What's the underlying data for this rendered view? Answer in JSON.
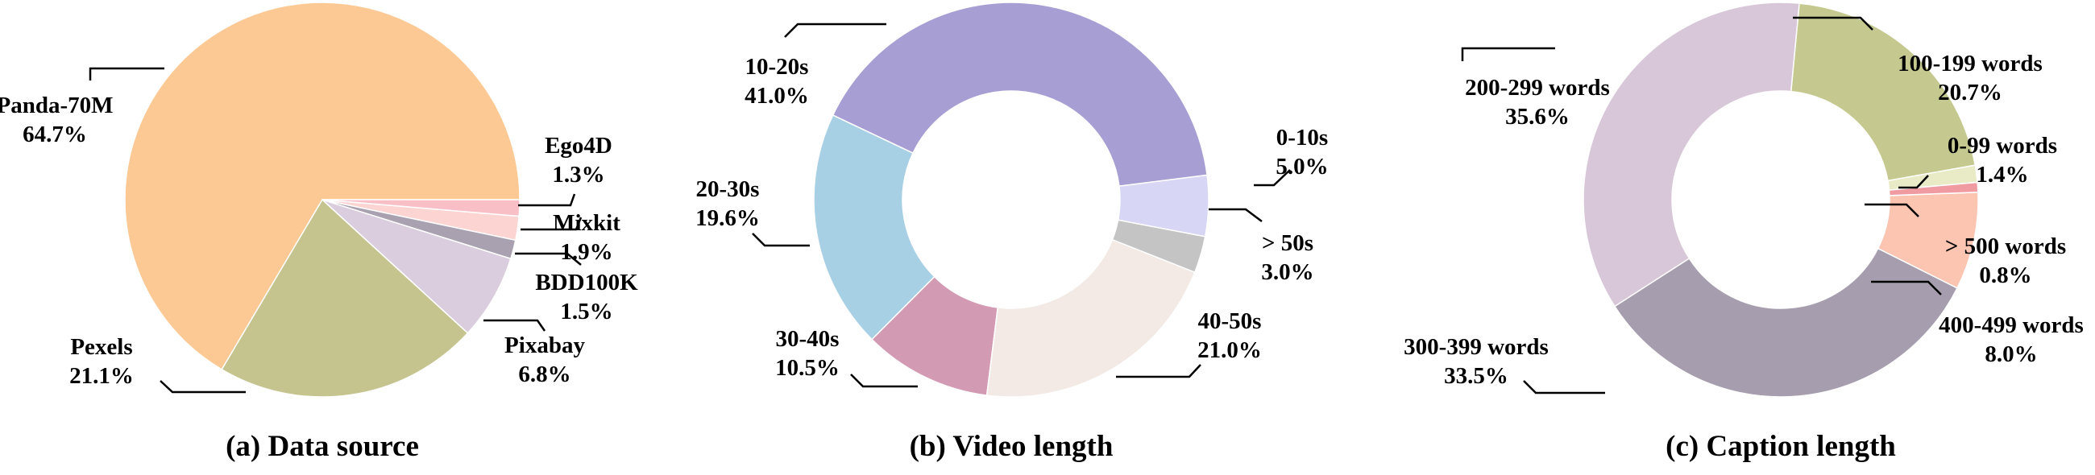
{
  "chart_data": [
    {
      "type": "pie",
      "title": "(a) Data source",
      "categories": [
        "Panda-70M",
        "Pexels",
        "Pixabay",
        "BDD100K",
        "Mixkit",
        "Ego4D"
      ],
      "values": [
        64.7,
        21.1,
        6.8,
        1.5,
        1.9,
        1.3
      ],
      "value_labels": [
        "64.7%",
        "21.1%",
        "6.8%",
        "1.5%",
        "1.9%",
        "1.3%"
      ],
      "colors": [
        "#FCC994",
        "#C5C48F",
        "#DACDDD",
        "#A9A1AF",
        "#FCD5D3",
        "#F8BFC6"
      ]
    },
    {
      "type": "pie",
      "title": "(b) Video length",
      "categories": [
        "0-10s",
        "10-20s",
        "20-30s",
        "30-40s",
        "40-50s",
        "> 50s"
      ],
      "values": [
        5.0,
        41.0,
        19.6,
        10.5,
        21.0,
        3.0
      ],
      "value_labels": [
        "5.0%",
        "41.0%",
        "19.6%",
        "10.5%",
        "21.0%",
        "3.0%"
      ],
      "colors": [
        "#D8D6F5",
        "#A79ED3",
        "#A8D0E5",
        "#D39AB3",
        "#F3EAE5",
        "#C4C4C4"
      ]
    },
    {
      "type": "pie",
      "title": "(c) Caption length",
      "categories": [
        "0-99 words",
        "100-199 words",
        "200-299 words",
        "300-399 words",
        "400-499 words",
        "> 500 words"
      ],
      "values": [
        1.4,
        20.7,
        35.6,
        33.5,
        8.0,
        0.8
      ],
      "value_labels": [
        "1.4%",
        "20.7%",
        "35.6%",
        "33.5%",
        "8.0%",
        "0.8%"
      ],
      "colors": [
        "#E8EBC5",
        "#C5C98F",
        "#D8C7D8",
        "#A69EAF",
        "#FCC5B2",
        "#F09AA2"
      ]
    }
  ]
}
